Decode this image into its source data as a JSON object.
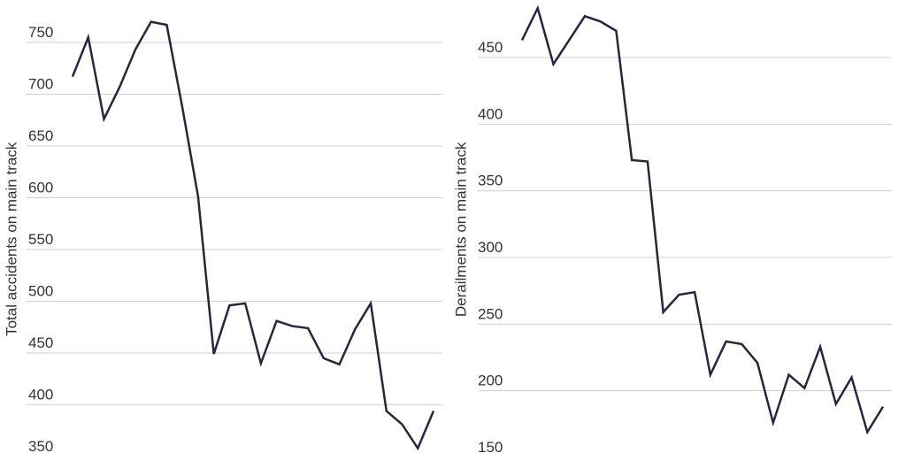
{
  "chart_data": [
    {
      "type": "line",
      "y_label": "Total accidents on main track",
      "categories": [
        null,
        null,
        null,
        null,
        null,
        null,
        null,
        null,
        null,
        null,
        null,
        null,
        null,
        null,
        null,
        null,
        null,
        null,
        null,
        null,
        null,
        null,
        null,
        null
      ],
      "series": [
        {
          "color": "#262640",
          "values": [
            717,
            755,
            676,
            707,
            743,
            770,
            767,
            687,
            601,
            449,
            496,
            498,
            440,
            481,
            476,
            474,
            445,
            439,
            473,
            498,
            394,
            381,
            358,
            394
          ]
        }
      ],
      "ylim": [
        345,
        775
      ],
      "yticks": [
        350,
        400,
        450,
        500,
        550,
        600,
        650,
        700,
        750
      ],
      "grid": true
    },
    {
      "type": "line",
      "y_label": "Derailments on main track",
      "categories": [
        null,
        null,
        null,
        null,
        null,
        null,
        null,
        null,
        null,
        null,
        null,
        null,
        null,
        null,
        null,
        null,
        null,
        null,
        null,
        null,
        null,
        null,
        null,
        null
      ],
      "series": [
        {
          "color": "#262640",
          "values": [
            463,
            487,
            445,
            463,
            481,
            477,
            470,
            373,
            372,
            259,
            272,
            274,
            212,
            237,
            235,
            221,
            176,
            212,
            202,
            233,
            190,
            210,
            169,
            188
          ]
        }
      ],
      "ylim": [
        150,
        492
      ],
      "yticks": [
        150,
        200,
        250,
        300,
        350,
        400,
        450
      ],
      "grid": true
    }
  ]
}
